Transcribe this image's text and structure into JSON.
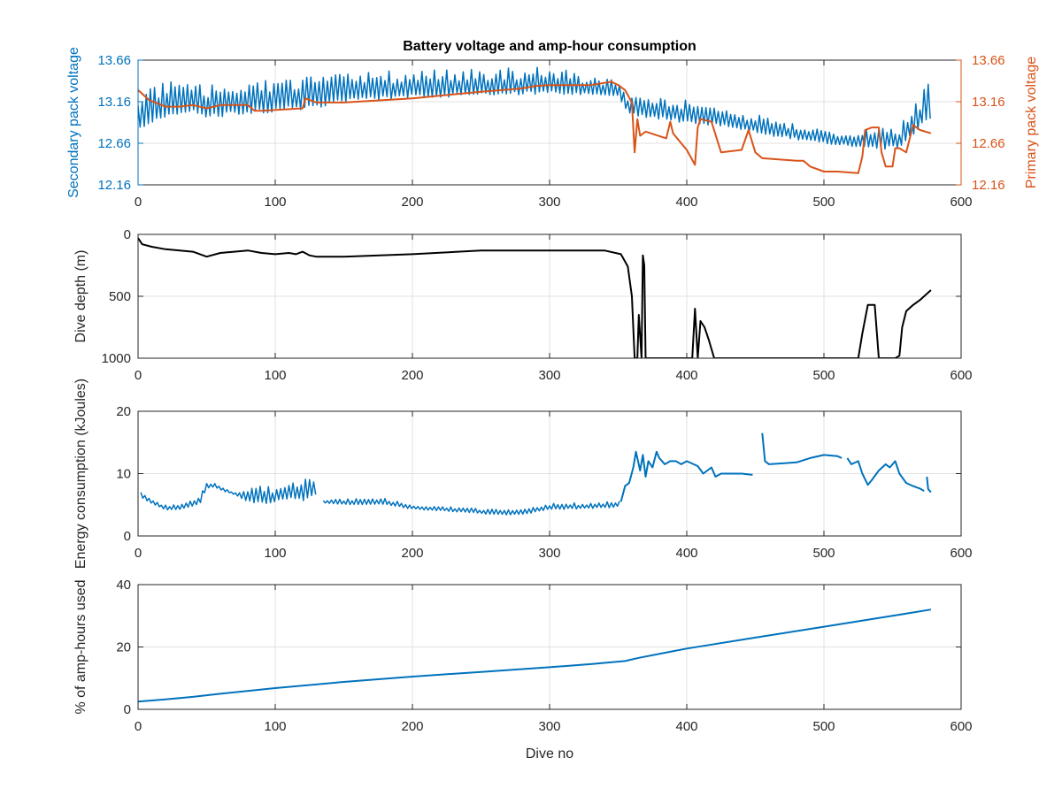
{
  "figure": {
    "title": "Battery voltage and amp-hour consumption"
  },
  "colors": {
    "blue": "#0072BD",
    "orange": "#D95319",
    "black": "#000000",
    "axis": "#262626",
    "grid": "#e1e1e1",
    "tick_label": "#262626"
  },
  "chart_data": [
    {
      "type": "line",
      "title": "Battery voltage and amp-hour consumption",
      "xlabel": "",
      "ylabel": "Secondary pack voltage",
      "ylabel_right": "Primary pack voltage",
      "xlim": [
        0,
        600
      ],
      "ylim": [
        12.16,
        13.66
      ],
      "ylim_right": [
        12.16,
        13.66
      ],
      "xticks": [
        0,
        100,
        200,
        300,
        400,
        500,
        600
      ],
      "yticks": [
        12.16,
        12.66,
        13.16,
        13.66
      ],
      "yticklabels": [
        "12.16",
        "12.66",
        "13.16",
        "13.66"
      ],
      "yticks_right": [
        12.16,
        12.66,
        13.16,
        13.66
      ],
      "yticklabels_right": [
        "12.16",
        "12.66",
        "13.16",
        "13.66"
      ],
      "grid": true,
      "reversed_y": false,
      "series": [
        {
          "color_key": "blue",
          "axis": "left",
          "oscillating": true,
          "x": [
            0,
            10,
            20,
            40,
            50,
            70,
            90,
            110,
            130,
            150,
            200,
            250,
            300,
            350,
            357,
            365,
            380,
            400,
            430,
            460,
            490,
            520,
            540,
            555,
            565,
            578
          ],
          "low": [
            12.74,
            12.9,
            12.98,
            13.01,
            12.95,
            13.0,
            13.02,
            13.05,
            13.08,
            13.15,
            13.2,
            13.23,
            13.25,
            13.22,
            13.02,
            12.98,
            12.95,
            12.9,
            12.85,
            12.75,
            12.68,
            12.62,
            12.58,
            12.6,
            12.74,
            12.95
          ],
          "high": [
            13.42,
            13.4,
            13.42,
            13.38,
            13.35,
            13.42,
            13.45,
            13.45,
            13.48,
            13.5,
            13.55,
            13.56,
            13.58,
            13.42,
            13.2,
            13.3,
            13.2,
            13.18,
            13.1,
            12.98,
            12.85,
            12.78,
            12.92,
            12.88,
            13.1,
            13.45
          ]
        },
        {
          "color_key": "orange",
          "axis": "right",
          "oscillating": false,
          "x": [
            0,
            8,
            20,
            30,
            40,
            50,
            60,
            80,
            85,
            90,
            120,
            122,
            130,
            150,
            200,
            250,
            280,
            290,
            300,
            320,
            330,
            345,
            350,
            355,
            360,
            362,
            364,
            366,
            370,
            385,
            388,
            390,
            400,
            406,
            408,
            410,
            418,
            425,
            440,
            445,
            450,
            455,
            480,
            485,
            490,
            500,
            510,
            525,
            528,
            530,
            535,
            540,
            542,
            545,
            550,
            552,
            555,
            560,
            565,
            570,
            578
          ],
          "y": [
            13.3,
            13.18,
            13.1,
            13.1,
            13.12,
            13.08,
            13.12,
            13.12,
            13.05,
            13.05,
            13.08,
            13.2,
            13.15,
            13.15,
            13.2,
            13.28,
            13.32,
            13.35,
            13.36,
            13.36,
            13.36,
            13.4,
            13.36,
            13.3,
            13.15,
            12.55,
            12.95,
            12.75,
            12.8,
            12.72,
            12.92,
            12.78,
            12.58,
            12.4,
            12.85,
            12.95,
            12.92,
            12.55,
            12.58,
            12.82,
            12.55,
            12.48,
            12.45,
            12.45,
            12.38,
            12.32,
            12.32,
            12.3,
            12.5,
            12.82,
            12.85,
            12.85,
            12.55,
            12.38,
            12.38,
            12.6,
            12.6,
            12.55,
            12.88,
            12.82,
            12.78
          ]
        }
      ]
    },
    {
      "type": "line",
      "title": "",
      "xlabel": "",
      "ylabel": "Dive depth (m)",
      "xlim": [
        0,
        600
      ],
      "ylim": [
        0,
        1000
      ],
      "xticks": [
        0,
        100,
        200,
        300,
        400,
        500,
        600
      ],
      "yticks": [
        0,
        500,
        1000
      ],
      "yticklabels": [
        "0",
        "500",
        "1000"
      ],
      "grid": true,
      "reversed_y": true,
      "series": [
        {
          "color_key": "black",
          "axis": "left",
          "oscillating": false,
          "x": [
            0,
            3,
            10,
            20,
            40,
            50,
            60,
            70,
            80,
            90,
            100,
            110,
            115,
            120,
            125,
            130,
            150,
            200,
            250,
            300,
            340,
            352,
            355,
            357,
            360,
            362,
            364,
            365,
            367,
            368,
            369,
            370,
            373,
            380,
            400,
            404,
            406,
            408,
            410,
            413,
            416,
            420,
            450,
            500,
            525,
            528,
            532,
            537,
            540,
            545,
            552,
            555,
            557,
            560,
            565,
            570,
            578
          ],
          "y": [
            30,
            80,
            100,
            120,
            140,
            180,
            150,
            140,
            130,
            150,
            160,
            150,
            160,
            140,
            170,
            180,
            180,
            160,
            130,
            130,
            130,
            160,
            220,
            260,
            500,
            1000,
            1000,
            650,
            1000,
            170,
            250,
            1000,
            1000,
            1000,
            1000,
            1000,
            600,
            1000,
            700,
            750,
            850,
            1000,
            1000,
            1000,
            1000,
            800,
            570,
            570,
            1000,
            1000,
            1000,
            980,
            750,
            620,
            570,
            530,
            450
          ]
        }
      ]
    },
    {
      "type": "line",
      "title": "",
      "xlabel": "",
      "ylabel": "Energy consumption (kJoules)",
      "xlim": [
        0,
        600
      ],
      "ylim": [
        0,
        20
      ],
      "xticks": [
        0,
        100,
        200,
        300,
        400,
        500,
        600
      ],
      "yticks": [
        0,
        10,
        20
      ],
      "yticklabels": [
        "0",
        "10",
        "20"
      ],
      "grid": true,
      "reversed_y": false,
      "series": [
        {
          "color_key": "blue",
          "axis": "left",
          "oscillating": true,
          "x": [
            2,
            10,
            20,
            30,
            45,
            50,
            55,
            70,
            80,
            90,
            100,
            110,
            120,
            130
          ],
          "low": [
            6.0,
            5.2,
            4.2,
            4.2,
            5.0,
            7.6,
            7.8,
            6.6,
            5.5,
            5.0,
            5.5,
            5.8,
            5.6,
            6.5
          ],
          "high": [
            7.8,
            5.8,
            5.0,
            5.0,
            6.2,
            8.8,
            8.5,
            7.0,
            8.0,
            8.5,
            7.8,
            8.3,
            9.8,
            8.5
          ]
        },
        {
          "color_key": "blue",
          "axis": "left",
          "oscillating": true,
          "x": [
            135,
            160,
            180,
            200,
            230,
            260,
            280,
            300,
            330,
            345,
            352
          ],
          "low": [
            5.2,
            5.0,
            5.0,
            4.3,
            3.9,
            3.4,
            3.4,
            4.2,
            4.4,
            4.5,
            4.9
          ],
          "high": [
            6.0,
            6.0,
            6.0,
            5.0,
            4.7,
            4.3,
            4.2,
            5.2,
            5.4,
            5.6,
            5.6
          ]
        },
        {
          "color_key": "blue",
          "axis": "left",
          "oscillating": false,
          "x": [
            352,
            355,
            358,
            361,
            363,
            366,
            368,
            370,
            372,
            375,
            378,
            380,
            384,
            388,
            392,
            396,
            400,
            405,
            408,
            412,
            418,
            421,
            425,
            440,
            448
          ],
          "y": [
            5.5,
            8.0,
            8.5,
            11.0,
            13.5,
            10.5,
            13.0,
            9.5,
            12.0,
            11.0,
            13.5,
            12.5,
            11.5,
            12.0,
            12.0,
            11.5,
            12.0,
            11.5,
            11.2,
            10.0,
            11.0,
            9.5,
            10.0,
            10.0,
            9.8
          ]
        },
        {
          "color_key": "blue",
          "axis": "left",
          "oscillating": false,
          "x": [
            455,
            457,
            460,
            480,
            490,
            500,
            510,
            513
          ],
          "y": [
            16.5,
            12.0,
            11.5,
            11.8,
            12.5,
            13.0,
            12.8,
            12.5
          ]
        },
        {
          "color_key": "blue",
          "axis": "left",
          "oscillating": false,
          "x": [
            517,
            520,
            525,
            528,
            532,
            535,
            540,
            545,
            548,
            552,
            555,
            560,
            565,
            570,
            573
          ],
          "y": [
            12.5,
            11.5,
            12.0,
            10.0,
            8.2,
            9.0,
            10.5,
            11.5,
            11.0,
            12.0,
            10.0,
            8.5,
            8.0,
            7.6,
            7.2
          ]
        },
        {
          "color_key": "blue",
          "axis": "left",
          "oscillating": false,
          "x": [
            575,
            576,
            578
          ],
          "y": [
            9.5,
            7.5,
            7.0
          ]
        }
      ]
    },
    {
      "type": "line",
      "title": "",
      "xlabel": "Dive no",
      "ylabel": "% of amp-hours used",
      "xlim": [
        0,
        600
      ],
      "ylim": [
        0,
        40
      ],
      "xticks": [
        0,
        100,
        200,
        300,
        400,
        500,
        600
      ],
      "yticks": [
        0,
        20,
        40
      ],
      "yticklabels": [
        "0",
        "20",
        "40"
      ],
      "grid": true,
      "reversed_y": false,
      "series": [
        {
          "color_key": "blue",
          "axis": "left",
          "oscillating": false,
          "x": [
            0,
            20,
            40,
            60,
            100,
            150,
            200,
            250,
            300,
            330,
            355,
            365,
            400,
            450,
            500,
            550,
            578
          ],
          "y": [
            2.5,
            3.2,
            4.0,
            5.0,
            6.8,
            8.8,
            10.5,
            12.0,
            13.5,
            14.5,
            15.5,
            16.5,
            19.5,
            23.0,
            26.5,
            30.0,
            32.0
          ]
        }
      ]
    }
  ]
}
